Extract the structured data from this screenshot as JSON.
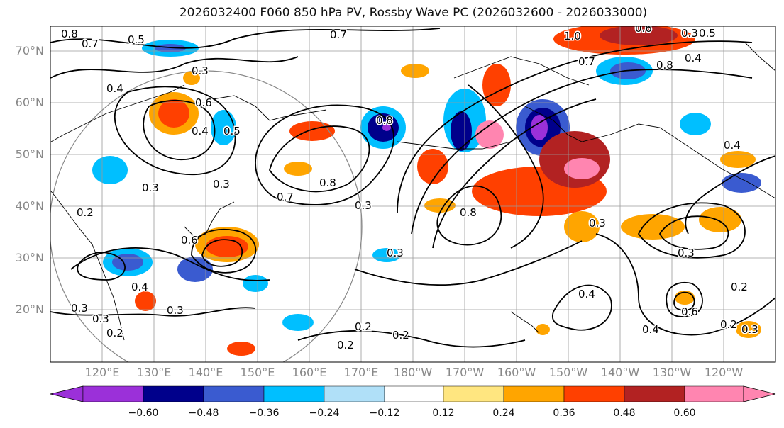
{
  "title": "2026032400 F060 850 hPa PV, Rossby Wave PC (2026032600 - 2026033000)",
  "lat_labels": [
    "70°N",
    "60°N",
    "50°N",
    "40°N",
    "30°N",
    "20°N"
  ],
  "lon_labels": [
    "120°E",
    "130°E",
    "140°E",
    "150°E",
    "160°E",
    "170°E",
    "180°W",
    "170°W",
    "160°W",
    "150°W",
    "140°W",
    "130°W",
    "120°W"
  ],
  "colorbar": {
    "ticks": [
      "−0.60",
      "−0.48",
      "−0.36",
      "−0.24",
      "−0.12",
      "0.12",
      "0.24",
      "0.36",
      "0.48",
      "0.60"
    ],
    "colors": [
      "#9b30d9",
      "#00008b",
      "#3a5bd0",
      "#00bfff",
      "#b0e0f8",
      "#ffffff",
      "#ffe680",
      "#ffa500",
      "#ff4000",
      "#b22222",
      "#ff85b0"
    ]
  },
  "contour_labels": [
    "0.8",
    "0.7",
    "0.5",
    "0.4",
    "0.7",
    "1.0",
    "0.7",
    "0.6",
    "0.4",
    "0.3",
    "0.3",
    "0.3",
    "0.7",
    "0.8",
    "0.6",
    "0.4",
    "0.2",
    "0.3",
    "0.8",
    "0.5",
    "0.3",
    "0.8",
    "0.3",
    "0.3",
    "0.4",
    "0.2",
    "0.3",
    "0.3",
    "0.4",
    "0.2",
    "0.2",
    "0.2",
    "0.2",
    "0.4",
    "0.6",
    "0.3",
    "0.3",
    "0.2",
    "0.3",
    "0.6",
    "0.5",
    "0.8",
    "0.4"
  ]
}
